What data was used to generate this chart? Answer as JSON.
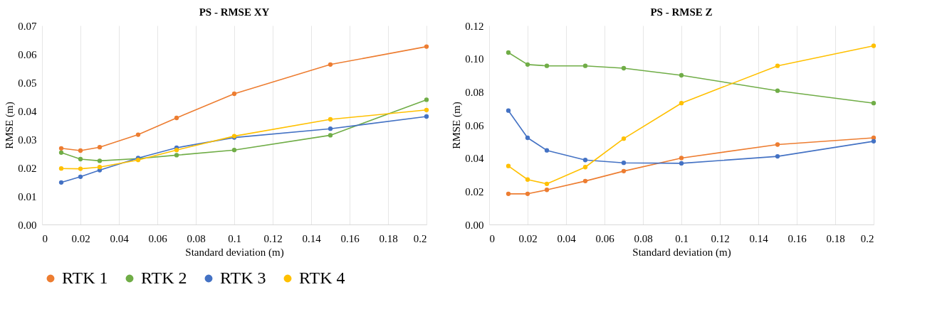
{
  "chart_data": [
    {
      "type": "line",
      "title": "PS - RMSE XY",
      "xlabel": "Standard deviation (m)",
      "ylabel": "RMSE (m)",
      "x": [
        0.01,
        0.02,
        0.03,
        0.05,
        0.07,
        0.1,
        0.15,
        0.2
      ],
      "xlim": [
        0,
        0.2
      ],
      "xticks": [
        0,
        0.02,
        0.04,
        0.06,
        0.08,
        0.1,
        0.12,
        0.14,
        0.16,
        0.18,
        0.2
      ],
      "ylim": [
        0,
        0.07
      ],
      "yticks": [
        {
          "value": 0,
          "label": "0.00"
        },
        {
          "value": 0.01,
          "label": "0.01"
        },
        {
          "value": 0.02,
          "label": "0.02"
        },
        {
          "value": 0.03,
          "label": "0.03"
        },
        {
          "value": 0.04,
          "label": "0.04"
        },
        {
          "value": 0.05,
          "label": "0.05"
        },
        {
          "value": 0.06,
          "label": "0.06"
        },
        {
          "value": 0.07,
          "label": "0.07"
        }
      ],
      "grid": "x",
      "marker": "circle",
      "legend": "bottom",
      "series": [
        {
          "name": "RTK 1",
          "color": "#ed7d31",
          "values": [
            0.0268,
            0.026,
            0.0272,
            0.0316,
            0.0375,
            0.046,
            0.0563,
            0.0626
          ]
        },
        {
          "name": "RTK 2",
          "color": "#70ad47",
          "values": [
            0.0253,
            0.023,
            0.0224,
            0.0232,
            0.0244,
            0.0262,
            0.0314,
            0.0439
          ]
        },
        {
          "name": "RTK 3",
          "color": "#4472c4",
          "values": [
            0.0148,
            0.0168,
            0.0191,
            0.0234,
            0.027,
            0.0306,
            0.0337,
            0.038
          ]
        },
        {
          "name": "RTK 4",
          "color": "#ffc000",
          "values": [
            0.0197,
            0.0196,
            0.0202,
            0.0227,
            0.0262,
            0.0311,
            0.037,
            0.0403
          ]
        }
      ]
    },
    {
      "type": "line",
      "title": "PS - RMSE Z",
      "xlabel": "Standard deviation (m)",
      "ylabel": "RMSE (m)",
      "x": [
        0.01,
        0.02,
        0.03,
        0.05,
        0.07,
        0.1,
        0.15,
        0.2
      ],
      "xlim": [
        0,
        0.2
      ],
      "xticks": [
        0,
        0.02,
        0.04,
        0.06,
        0.08,
        0.1,
        0.12,
        0.14,
        0.16,
        0.18,
        0.2
      ],
      "ylim": [
        0,
        0.12
      ],
      "yticks": [
        {
          "value": 0,
          "label": "0.00"
        },
        {
          "value": 0.02,
          "label": "0.02"
        },
        {
          "value": 0.04,
          "label": "0.04"
        },
        {
          "value": 0.06,
          "label": "0.06"
        },
        {
          "value": 0.08,
          "label": "0.08"
        },
        {
          "value": 0.1,
          "label": "0.10"
        },
        {
          "value": 0.12,
          "label": "0.12"
        }
      ],
      "grid": "x",
      "marker": "circle",
      "legend": "bottom",
      "series": [
        {
          "name": "RTK 1",
          "color": "#ed7d31",
          "values": [
            0.0185,
            0.0185,
            0.0209,
            0.0262,
            0.0322,
            0.0401,
            0.0482,
            0.0523
          ]
        },
        {
          "name": "RTK 2",
          "color": "#70ad47",
          "values": [
            0.1037,
            0.0965,
            0.0957,
            0.0957,
            0.0943,
            0.09,
            0.0807,
            0.0732
          ]
        },
        {
          "name": "RTK 3",
          "color": "#4472c4",
          "values": [
            0.0687,
            0.0523,
            0.0447,
            0.0389,
            0.0372,
            0.0369,
            0.0411,
            0.0502
          ]
        },
        {
          "name": "RTK 4",
          "color": "#ffc000",
          "values": [
            0.0353,
            0.0271,
            0.0245,
            0.0346,
            0.0518,
            0.0732,
            0.0957,
            0.1078
          ]
        }
      ]
    }
  ]
}
